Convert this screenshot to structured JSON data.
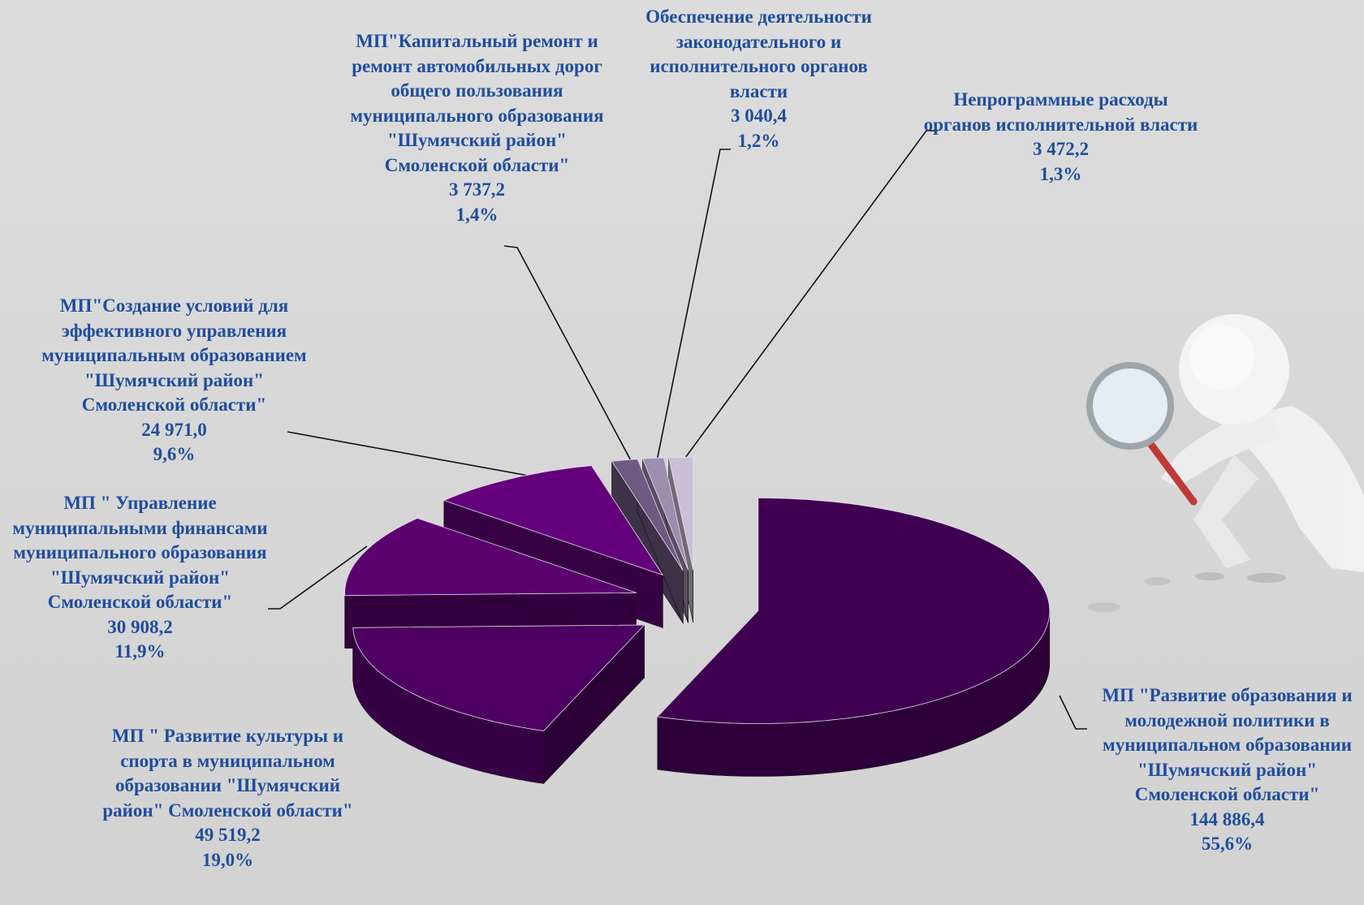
{
  "chart_data": {
    "type": "pie3d",
    "categories": [
      "МП \"Развитие образования и молодежной политики в муниципальном образовании \"Шумячский район\" Смоленской области\"",
      "МП \" Развитие культуры и спорта в муниципальном образовании \"Шумячский район\" Смоленской области\"",
      "МП \" Управление муниципальными финансами муниципального образования \"Шумячский район\" Смоленской области\"",
      "МП\"Создание условий для эффективного управления муниципальным образованием \"Шумячский район\" Смоленской области\"",
      "МП\"Капитальный ремонт и ремонт автомобильных дорог общего пользования муниципального образования \"Шумячский район\" Смоленской области\"",
      "Обеспечение деятельности законодательного и исполнительного органов власти",
      "Непрограммные расходы органов исполнительной власти"
    ],
    "values": [
      144886.4,
      49519.2,
      30908.2,
      24971.0,
      3737.2,
      3040.4,
      3472.2
    ],
    "value_labels": [
      "144 886,4",
      "49 519,2",
      "30 908,2",
      "24 971,0",
      "3 737,2",
      "3 040,4",
      "3 472,2"
    ],
    "percents": [
      55.6,
      19.0,
      11.9,
      9.6,
      1.4,
      1.2,
      1.3
    ],
    "percent_labels": [
      "55,6%",
      "19,0%",
      "11,9%",
      "9,6%",
      "1,4%",
      "1,2%",
      "1,3%"
    ],
    "colors": [
      "#400052",
      "#4d0062",
      "#5a006f",
      "#64007b",
      "#6e5a82",
      "#9e8eae",
      "#cbbfd6"
    ]
  }
}
